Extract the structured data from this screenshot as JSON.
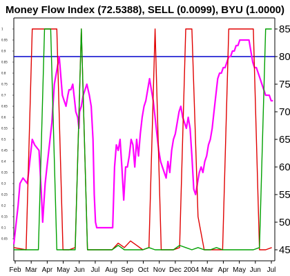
{
  "chart_data": {
    "type": "line",
    "title": "Money Flow Index (72.5388), SELL (0.0099), BYU (1.0000)",
    "x_categories": [
      "Feb",
      "Mar",
      "Apr",
      "May",
      "Jun",
      "Jul",
      "Aug",
      "Sep",
      "Oct",
      "Nov",
      "Dec",
      "2004",
      "Mar",
      "Apr",
      "May",
      "Jun",
      "Jul"
    ],
    "right_axis": {
      "ticks": [
        45,
        50,
        55,
        60,
        65,
        70,
        75,
        80,
        85
      ],
      "range": [
        43,
        87
      ]
    },
    "left_axis": {
      "ticks": [
        "0.05",
        "0.1",
        "0.15",
        "0.2",
        "0.25",
        "0.3",
        "0.35",
        "0.4",
        "0.45",
        "0.5",
        "0.55",
        "0.6",
        "0.65",
        "0.7",
        "0.75",
        "0.8",
        "0.85",
        "0.9",
        "0.95",
        "1"
      ],
      "range": [
        -0.05,
        1.05
      ]
    },
    "reference_line": {
      "axis": "right",
      "value": 80,
      "color": "#0000cc"
    },
    "grid": false,
    "colors": {
      "mfi": "#ff00ff",
      "sell": "#e00000",
      "buy": "#00a000",
      "reference": "#0000cc"
    },
    "series": [
      {
        "key": "mfi",
        "axis": "right",
        "color": "#ff00ff",
        "x": [
          0,
          0.7,
          1.0,
          1.5,
          2.2,
          2.8,
          3.0,
          3.4,
          4.1,
          4.5,
          4.7,
          5.1,
          5.4,
          6.2,
          6.6,
          7.4,
          7.9,
          8.2,
          8.5,
          8.8,
          9.0,
          9.3,
          9.6,
          9.9,
          10.1,
          10.4,
          10.6,
          10.7,
          11.0,
          11.3,
          11.6,
          11.9,
          12.1,
          12.3,
          12.6,
          12.9,
          13.1,
          13.3,
          13.5,
          13.7,
          14.0,
          14.3,
          14.5,
          14.8,
          15.0,
          15.2,
          15.5,
          15.8,
          16.1,
          16.4,
          16.7,
          17.0,
          17.3,
          17.6,
          17.9,
          18.2,
          18.5,
          18.8,
          19.1,
          19.4,
          19.7,
          20.0,
          20.3,
          20.6,
          20.9,
          21.2,
          21.5,
          21.8,
          22.1,
          22.4,
          22.7,
          23.0,
          23.3,
          23.6,
          23.9,
          24.2,
          24.5,
          24.8,
          25.1,
          25.4,
          25.7,
          26.0,
          26.3,
          26.6,
          26.9,
          27.2,
          27.5,
          27.8,
          28.1,
          28.4,
          28.7,
          29.0,
          29.3,
          29.6,
          29.9,
          30.2,
          30.5,
          30.8,
          31.1,
          31.4,
          31.7,
          32.0,
          32.3,
          32.6,
          32.9,
          33.2,
          33.5,
          33.8,
          34.1,
          34.4,
          34.7,
          35.0,
          35.3,
          35.6,
          35.9,
          36.2,
          36.5,
          36.8,
          37.1,
          37.4,
          37.7,
          38.0,
          38.3,
          38.6,
          38.9,
          39.2,
          39.5,
          39.8,
          40.1,
          40.4,
          40.7,
          41.0,
          41.3,
          41.6,
          41.9,
          42.2
        ],
        "values": [
          46,
          53,
          57,
          58,
          57,
          63,
          65,
          64,
          63,
          55,
          50,
          57,
          60,
          68,
          75,
          80,
          73,
          72,
          71,
          73,
          74,
          74,
          75,
          72,
          70,
          69,
          67,
          70,
          71,
          73,
          74,
          75,
          74,
          73,
          71,
          65,
          55,
          50,
          49,
          49,
          49,
          49,
          49,
          49,
          49,
          49,
          49,
          49,
          49,
          60,
          64,
          63,
          65,
          60,
          54,
          60,
          60,
          62,
          65,
          64,
          60,
          65,
          62,
          66,
          69,
          71,
          72,
          74,
          76,
          74,
          72,
          69,
          66,
          63,
          61,
          60,
          59,
          58,
          61,
          59,
          63,
          65,
          66,
          68,
          70,
          71,
          69,
          68,
          67,
          69,
          67,
          62,
          56,
          55,
          57,
          59,
          60,
          59,
          61,
          62,
          64,
          65,
          67,
          70,
          73,
          76,
          77,
          77,
          78,
          78,
          79,
          80,
          80,
          81,
          81,
          82,
          82,
          83,
          83,
          83,
          83,
          83,
          83,
          81,
          79,
          78,
          78,
          77,
          76,
          75,
          74,
          73,
          73,
          73,
          72,
          72
        ]
      },
      {
        "key": "sell",
        "axis": "left",
        "color": "#e00000",
        "x": [
          0,
          2,
          3,
          7,
          8,
          9,
          10,
          11,
          12,
          13,
          14,
          16,
          17,
          18,
          19,
          20,
          21,
          22,
          23,
          24,
          25,
          26,
          27,
          28,
          29,
          30,
          31,
          32,
          33,
          34,
          35,
          36,
          37,
          38,
          39,
          40,
          41,
          42
        ],
        "values": [
          0.01,
          0.0,
          1.0,
          1.0,
          0.0,
          0.0,
          0.01,
          1.0,
          0.0,
          0.0,
          0.0,
          0.0,
          0.03,
          0.01,
          0.04,
          0.02,
          0.0,
          0.01,
          1.0,
          0.0,
          0.0,
          0.0,
          0.01,
          1.0,
          1.0,
          0.15,
          0.0,
          0.0,
          0.0,
          0.0,
          1.0,
          1.0,
          1.0,
          1.0,
          1.0,
          0.0,
          0.0,
          0.01
        ]
      },
      {
        "key": "buy",
        "axis": "left",
        "color": "#00a000",
        "x": [
          0,
          1,
          2,
          3,
          4,
          5,
          6,
          7,
          8,
          9,
          10,
          11,
          12,
          13,
          14,
          15,
          16,
          17,
          18,
          19,
          20,
          21,
          22,
          23,
          24,
          25,
          26,
          27,
          28,
          29,
          30,
          31,
          32,
          33,
          34,
          35,
          36,
          37,
          38,
          39,
          40,
          41,
          42
        ],
        "values": [
          0.0,
          0.0,
          0.0,
          0.0,
          0.0,
          1.0,
          1.0,
          0.0,
          0.0,
          0.0,
          0.0,
          1.0,
          0.0,
          0.0,
          0.0,
          0.0,
          0.0,
          0.02,
          0.0,
          0.0,
          0.0,
          0.0,
          0.01,
          0.0,
          0.0,
          0.0,
          0.0,
          0.02,
          0.01,
          0.0,
          0.01,
          0.0,
          0.0,
          0.01,
          0.0,
          0.0,
          0.0,
          0.0,
          0.0,
          0.0,
          0.01,
          1.0,
          1.0
        ]
      }
    ]
  }
}
